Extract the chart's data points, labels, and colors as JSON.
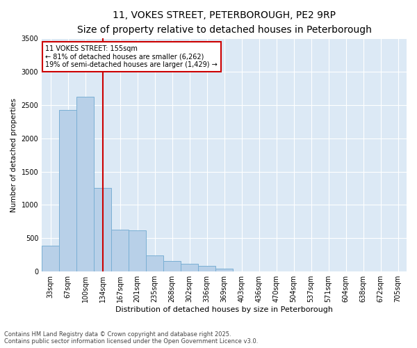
{
  "title_line1": "11, VOKES STREET, PETERBOROUGH, PE2 9RP",
  "title_line2": "Size of property relative to detached houses in Peterborough",
  "xlabel": "Distribution of detached houses by size in Peterborough",
  "ylabel": "Number of detached properties",
  "categories": [
    "33sqm",
    "67sqm",
    "100sqm",
    "134sqm",
    "167sqm",
    "201sqm",
    "235sqm",
    "268sqm",
    "302sqm",
    "336sqm",
    "369sqm",
    "403sqm",
    "436sqm",
    "470sqm",
    "504sqm",
    "537sqm",
    "571sqm",
    "604sqm",
    "638sqm",
    "672sqm",
    "705sqm"
  ],
  "values": [
    390,
    2420,
    2620,
    1260,
    630,
    620,
    240,
    155,
    120,
    85,
    40,
    0,
    0,
    0,
    0,
    0,
    0,
    0,
    0,
    0,
    0
  ],
  "bar_color": "#b8d0e8",
  "bar_edge_color": "#7aafd4",
  "vline_color": "#cc0000",
  "annotation_text": "11 VOKES STREET: 155sqm\n← 81% of detached houses are smaller (6,262)\n19% of semi-detached houses are larger (1,429) →",
  "annotation_box_facecolor": "#ffffff",
  "annotation_box_edgecolor": "#cc0000",
  "plot_bg_color": "#dce9f5",
  "fig_bg_color": "#ffffff",
  "ylim": [
    0,
    3500
  ],
  "yticks": [
    0,
    500,
    1000,
    1500,
    2000,
    2500,
    3000,
    3500
  ],
  "footer_line1": "Contains HM Land Registry data © Crown copyright and database right 2025.",
  "footer_line2": "Contains public sector information licensed under the Open Government Licence v3.0.",
  "grid_color": "#ffffff",
  "title_fontsize": 10,
  "subtitle_fontsize": 8.5,
  "xlabel_fontsize": 8,
  "ylabel_fontsize": 7.5,
  "tick_fontsize": 7,
  "annotation_fontsize": 7,
  "footer_fontsize": 6
}
